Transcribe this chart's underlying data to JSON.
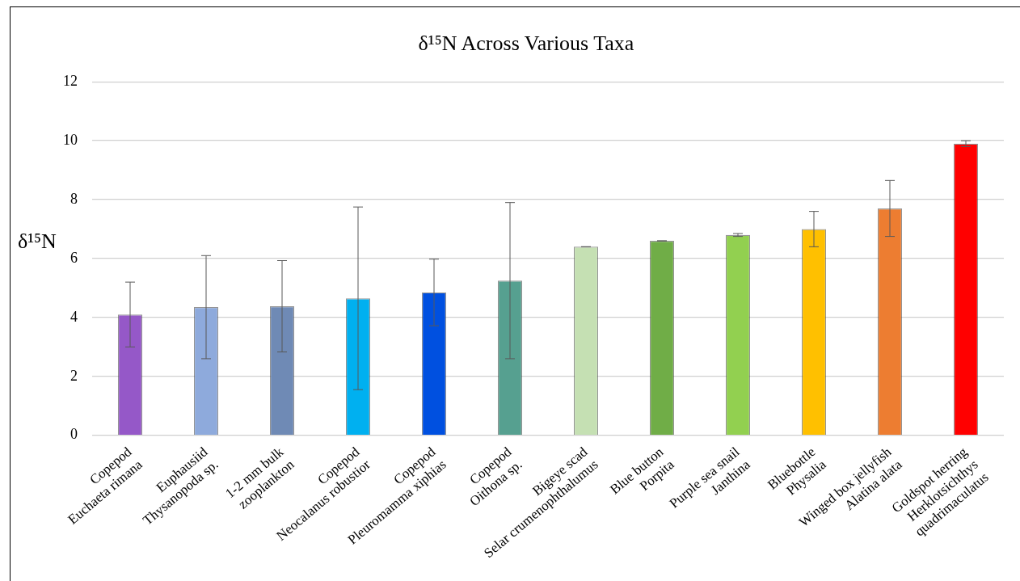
{
  "chart_data": {
    "type": "bar",
    "title": "δ¹⁵N Across Various Taxa",
    "ylabel": "δ¹⁵N",
    "categories": [
      "Copepod\nEuchaeta rimana",
      "Euphausiid\nThysanopoda sp.",
      "1-2 mm bulk\nzooplankton",
      "Copepod\nNeocalanus robustior",
      "Copepod\nPleuromamma xiphias",
      "Copepod\nOithona sp.",
      "Bigeye scad\nSelar crumenophthalumus",
      "Blue button\nPorpita",
      "Purple sea snail\nJanthina",
      "Bluebottle\nPhysalia",
      "Winged box jellyfish\nAlatina alata",
      "Goldspot herring\nHerklotsichthys\nquadrimaculatus"
    ],
    "values": [
      4.1,
      4.35,
      4.38,
      4.65,
      4.85,
      5.25,
      6.4,
      6.6,
      6.8,
      7.0,
      7.7,
      9.9
    ],
    "errors": [
      1.1,
      1.75,
      1.55,
      3.1,
      1.13,
      2.65,
      0,
      0,
      0.05,
      0.6,
      0.95,
      0.1
    ],
    "colors": [
      "#9558c8",
      "#8eaadc",
      "#6f8ab5",
      "#00b0f0",
      "#0050e0",
      "#56a090",
      "#c5e0b3",
      "#70ad47",
      "#92d050",
      "#ffc000",
      "#ed7d31",
      "#ff0000"
    ],
    "ylim": [
      0,
      12
    ],
    "yticks": [
      0,
      2,
      4,
      6,
      8,
      10,
      12
    ],
    "grid": "y"
  }
}
